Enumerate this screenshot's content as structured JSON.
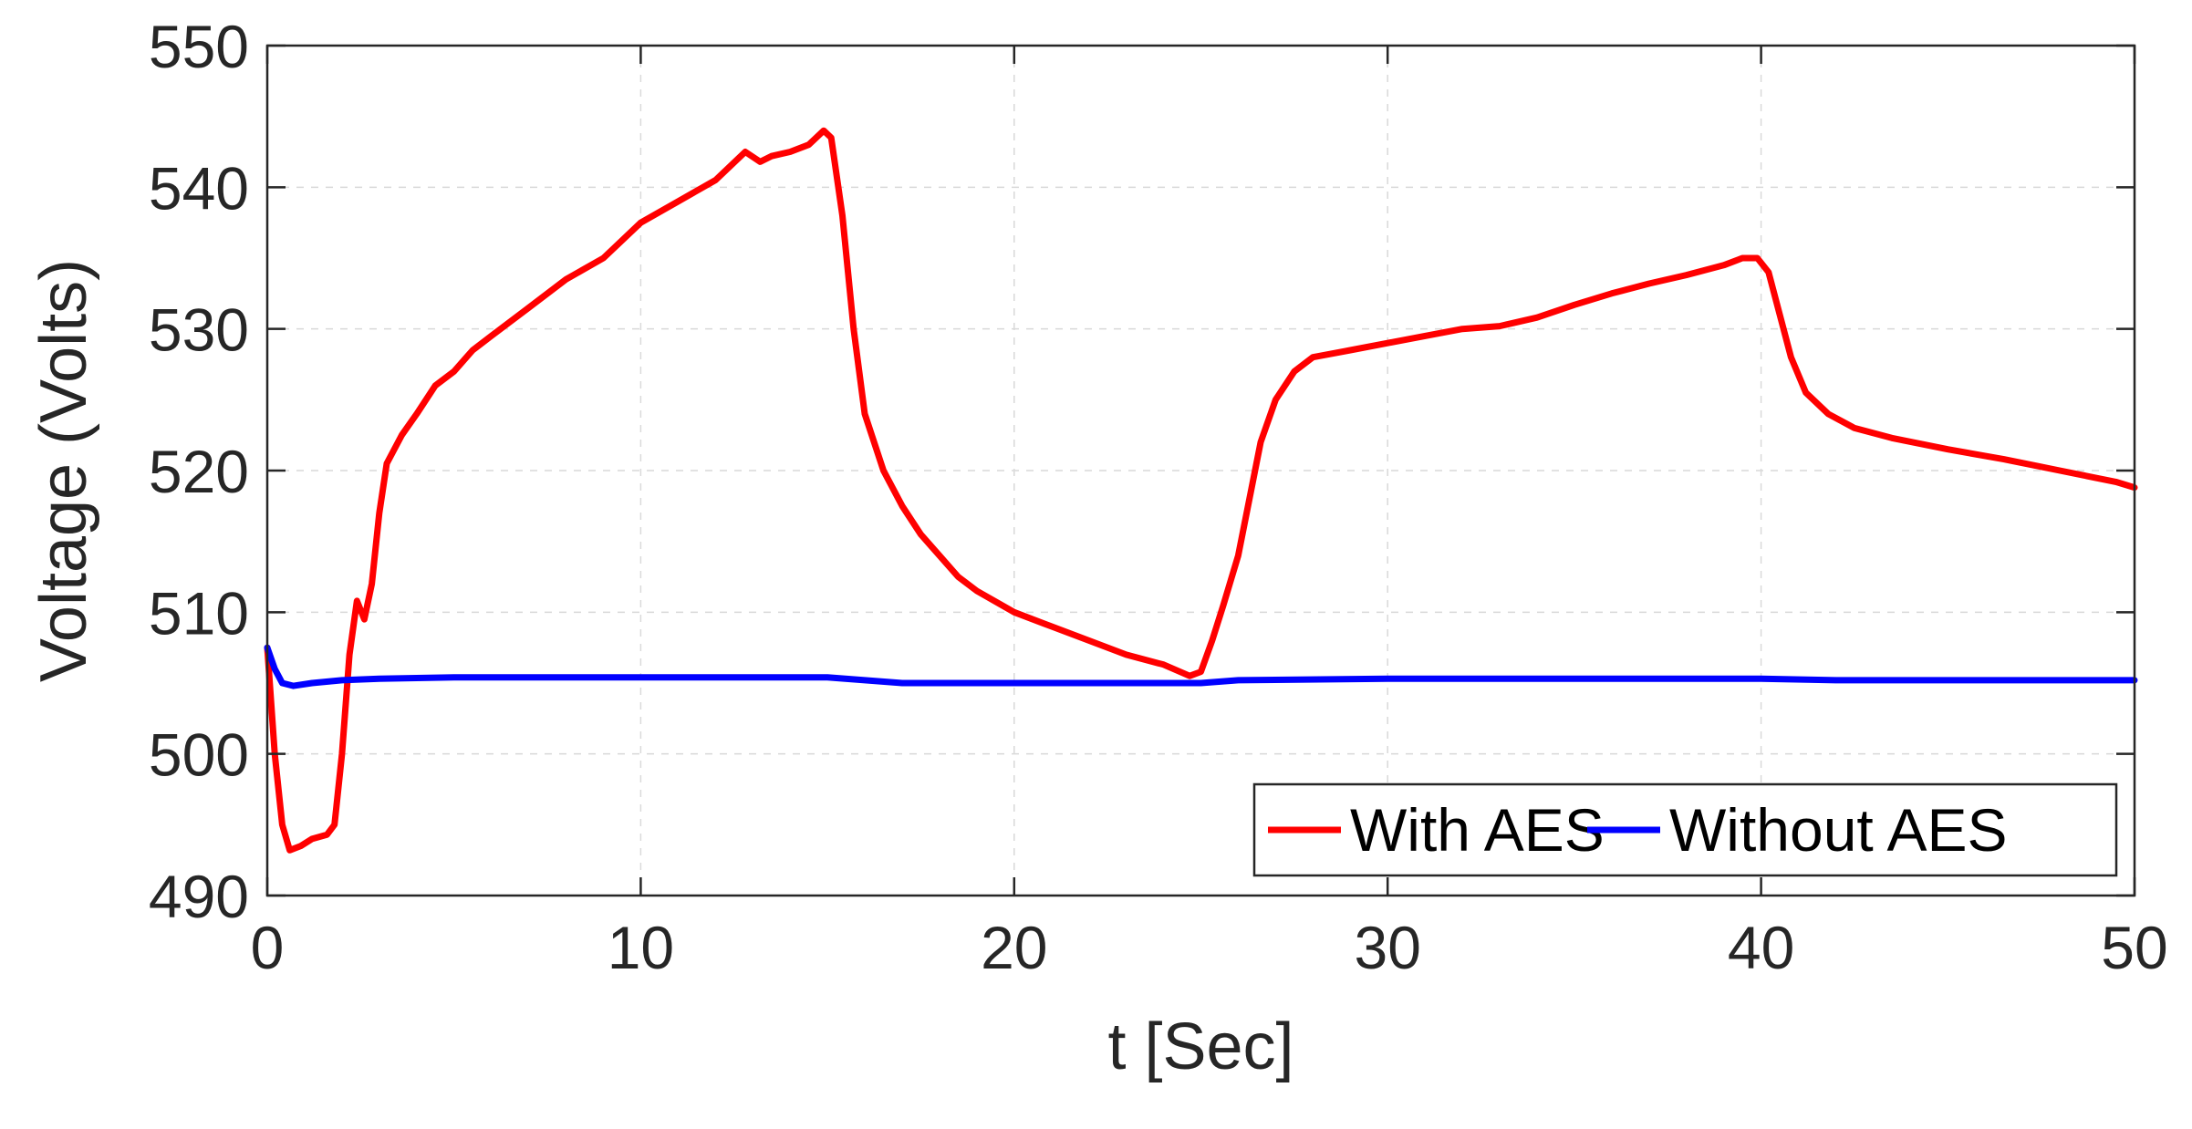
{
  "chart_data": {
    "type": "line",
    "xlabel": "t [Sec]",
    "ylabel": "Voltage (Volts)",
    "xlim": [
      0,
      50
    ],
    "ylim": [
      490,
      550
    ],
    "xticks": [
      "0",
      "10",
      "20",
      "30",
      "40",
      "50"
    ],
    "yticks": [
      "490",
      "500",
      "510",
      "520",
      "530",
      "540",
      "550"
    ],
    "grid": true,
    "legend_position": "bottom-right",
    "series": [
      {
        "name": "With AES",
        "color": "#ff0000",
        "points": [
          [
            0,
            507.5
          ],
          [
            0.2,
            500
          ],
          [
            0.4,
            495
          ],
          [
            0.6,
            493.2
          ],
          [
            0.9,
            493.5
          ],
          [
            1.2,
            494
          ],
          [
            1.6,
            494.3
          ],
          [
            1.8,
            495
          ],
          [
            2.0,
            500
          ],
          [
            2.2,
            507
          ],
          [
            2.4,
            510.8
          ],
          [
            2.6,
            509.5
          ],
          [
            2.8,
            512
          ],
          [
            3.0,
            517
          ],
          [
            3.2,
            520.5
          ],
          [
            3.6,
            522.5
          ],
          [
            4.0,
            524
          ],
          [
            4.5,
            526
          ],
          [
            5.0,
            527
          ],
          [
            5.5,
            528.5
          ],
          [
            6.0,
            529.5
          ],
          [
            7.0,
            531.5
          ],
          [
            8.0,
            533.5
          ],
          [
            9.0,
            535
          ],
          [
            10.0,
            537.5
          ],
          [
            11.0,
            539
          ],
          [
            12.0,
            540.5
          ],
          [
            12.8,
            542.5
          ],
          [
            13.2,
            541.8
          ],
          [
            13.5,
            542.2
          ],
          [
            14.0,
            542.5
          ],
          [
            14.5,
            543
          ],
          [
            14.9,
            544
          ],
          [
            15.1,
            543.5
          ],
          [
            15.4,
            538
          ],
          [
            15.7,
            530
          ],
          [
            16.0,
            524
          ],
          [
            16.5,
            520
          ],
          [
            17.0,
            517.5
          ],
          [
            17.5,
            515.5
          ],
          [
            18.0,
            514
          ],
          [
            18.5,
            512.5
          ],
          [
            19.0,
            511.5
          ],
          [
            20.0,
            510
          ],
          [
            21.0,
            509
          ],
          [
            22.0,
            508
          ],
          [
            23.0,
            507
          ],
          [
            24.0,
            506.3
          ],
          [
            24.7,
            505.5
          ],
          [
            25.0,
            505.8
          ],
          [
            25.3,
            508
          ],
          [
            25.6,
            510.5
          ],
          [
            26.0,
            514
          ],
          [
            26.3,
            518
          ],
          [
            26.6,
            522
          ],
          [
            27.0,
            525
          ],
          [
            27.5,
            527
          ],
          [
            28.0,
            528
          ],
          [
            29.0,
            528.5
          ],
          [
            30.0,
            529
          ],
          [
            31.0,
            529.5
          ],
          [
            32.0,
            530
          ],
          [
            33.0,
            530.2
          ],
          [
            34.0,
            530.8
          ],
          [
            35.0,
            531.7
          ],
          [
            36.0,
            532.5
          ],
          [
            37.0,
            533.2
          ],
          [
            38.0,
            533.8
          ],
          [
            39.0,
            534.5
          ],
          [
            39.5,
            535
          ],
          [
            39.9,
            535
          ],
          [
            40.2,
            534
          ],
          [
            40.5,
            531
          ],
          [
            40.8,
            528
          ],
          [
            41.2,
            525.5
          ],
          [
            41.8,
            524
          ],
          [
            42.5,
            523
          ],
          [
            43.5,
            522.3
          ],
          [
            45.0,
            521.5
          ],
          [
            46.5,
            520.8
          ],
          [
            48.0,
            520
          ],
          [
            49.5,
            519.2
          ],
          [
            50,
            518.8
          ]
        ]
      },
      {
        "name": "Without AES",
        "color": "#0000ff",
        "points": [
          [
            0,
            507.5
          ],
          [
            0.2,
            506
          ],
          [
            0.4,
            505
          ],
          [
            0.7,
            504.8
          ],
          [
            1.2,
            505
          ],
          [
            2.0,
            505.2
          ],
          [
            3.0,
            505.3
          ],
          [
            5.0,
            505.4
          ],
          [
            10.0,
            505.4
          ],
          [
            15.0,
            505.4
          ],
          [
            17.0,
            505
          ],
          [
            20.0,
            505
          ],
          [
            25.0,
            505
          ],
          [
            26.0,
            505.2
          ],
          [
            30.0,
            505.3
          ],
          [
            40.0,
            505.3
          ],
          [
            42.0,
            505.2
          ],
          [
            50,
            505.2
          ]
        ]
      }
    ]
  }
}
